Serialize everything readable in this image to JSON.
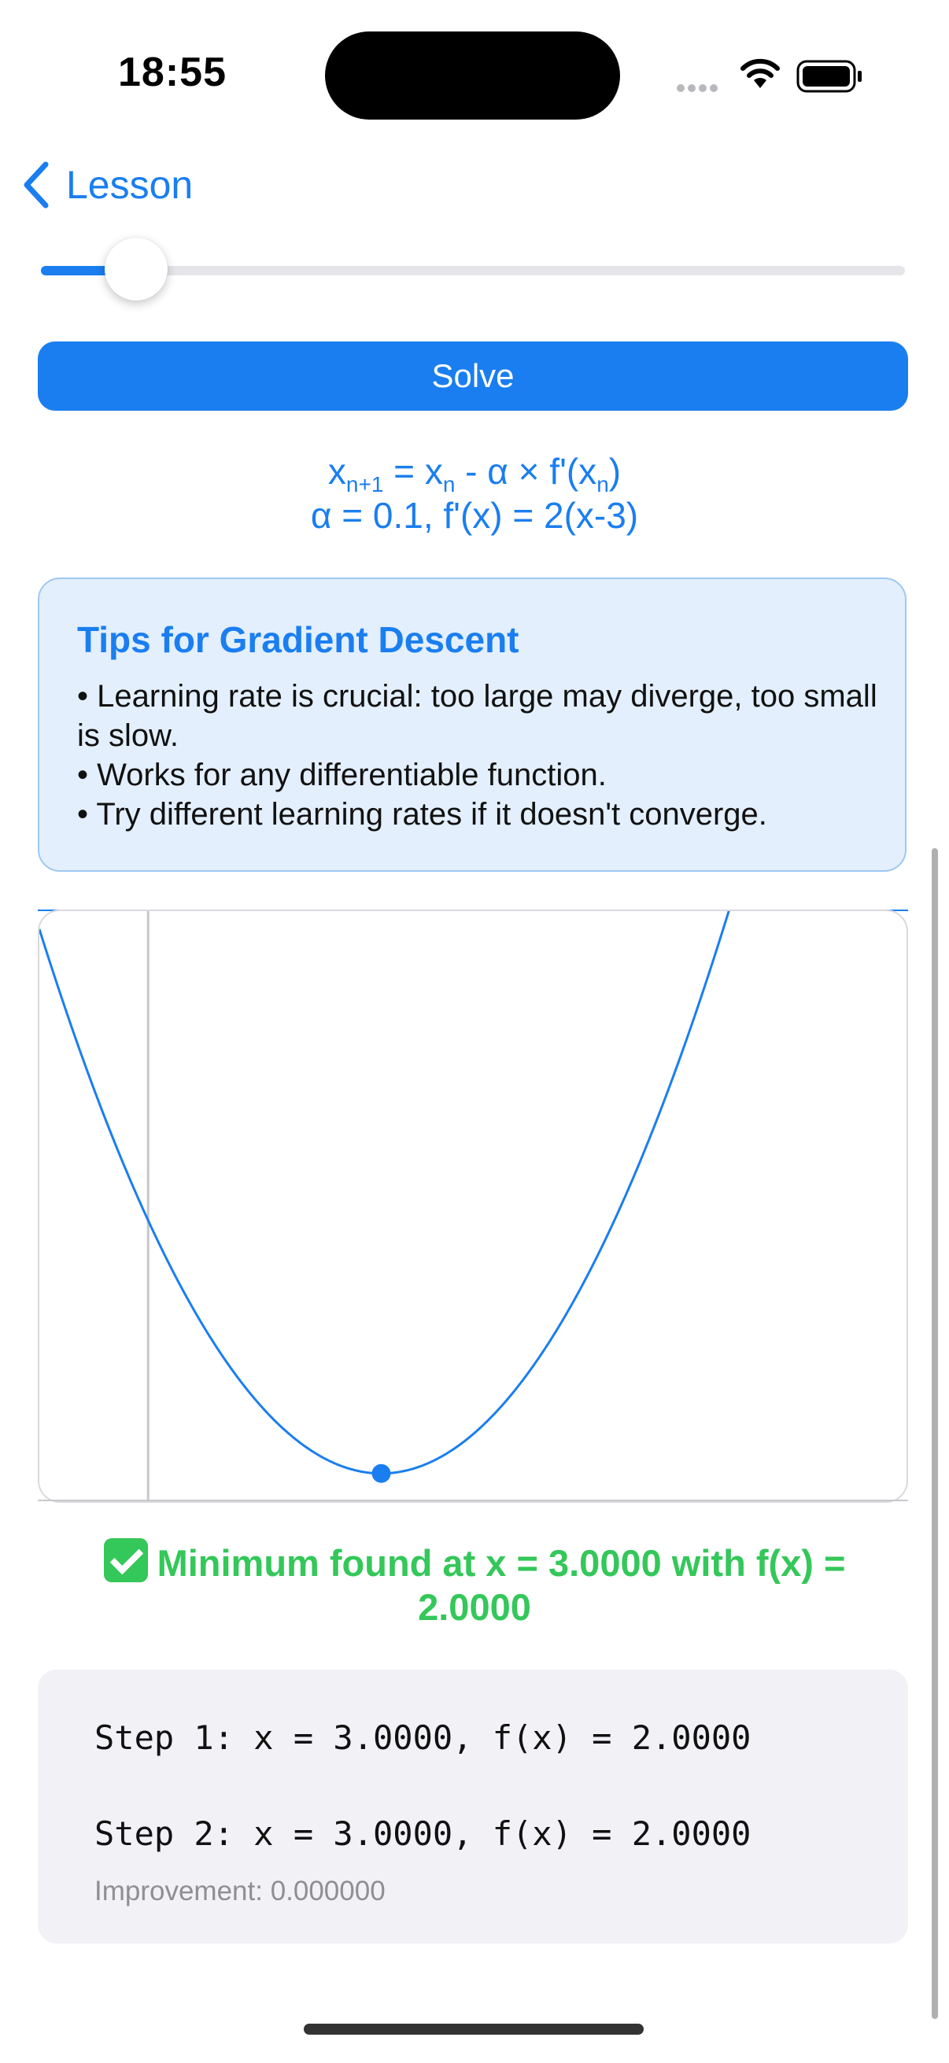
{
  "status_bar": {
    "time": "18:55"
  },
  "nav": {
    "back_label": "Lesson"
  },
  "slider": {
    "value_fraction": 0.11
  },
  "solve_button": {
    "label": "Solve"
  },
  "formula": {
    "line1": {
      "x": "x",
      "n1": "n+1",
      "eq": " = x",
      "n": "n",
      "rest": " - α × f'(x",
      "n_b": "n",
      "close": ")"
    },
    "line2": "α = 0.1, f'(x) = 2(x-3)"
  },
  "tips": {
    "title": "Tips for Gradient Descent",
    "items": [
      "• Learning rate is crucial: too large may diverge, too small is slow.",
      "• Works for any differentiable function.",
      "• Try different learning rates if it doesn't converge."
    ]
  },
  "chart_data": {
    "type": "line",
    "function": "f(x) = (x-3)^2 + 2",
    "xlim": [
      -1.4,
      9.8
    ],
    "ylim": [
      0.9,
      22
    ],
    "y_axis_at_x": 0,
    "series": [
      {
        "values_from_function": true,
        "color": "#1a7ef0"
      }
    ],
    "points": [
      {
        "x": 3.0,
        "y": 2.0
      }
    ],
    "grid": false
  },
  "result": {
    "text": "Minimum found at x = 3.0000 with f(x) = 2.0000",
    "color": "#34c759"
  },
  "steps": [
    {
      "text": "Step 1: x = 3.0000, f(x) = 2.0000"
    },
    {
      "text": "Step 2: x = 3.0000, f(x) = 2.0000",
      "improvement": "Improvement: 0.000000"
    }
  ],
  "colors": {
    "accent": "#1a7ef0",
    "success": "#34c759",
    "tips_bg": "#e3effc"
  }
}
